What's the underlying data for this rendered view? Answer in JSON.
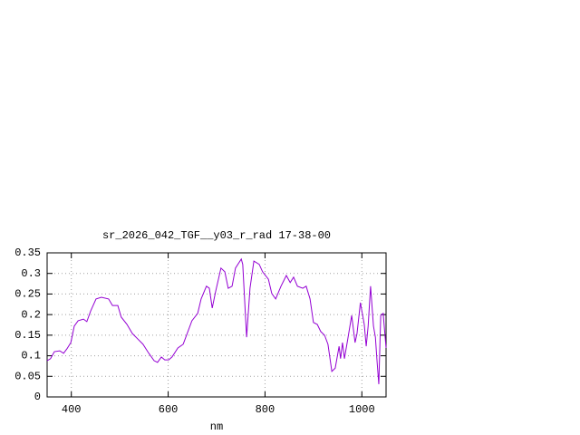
{
  "chart_data": {
    "type": "line",
    "title": "sr_2026_042_TGF__y03_r_rad 17-38-00",
    "x_label": "nm",
    "x": [
      350,
      357,
      365,
      376,
      384,
      391,
      399,
      406,
      414,
      425,
      432,
      440,
      451,
      462,
      477,
      485,
      496,
      503,
      515,
      526,
      537,
      548,
      560,
      571,
      578,
      586,
      593,
      601,
      608,
      620,
      631,
      638,
      649,
      661,
      668,
      679,
      685,
      691,
      698,
      709,
      717,
      724,
      732,
      739,
      751,
      754,
      762,
      769,
      777,
      788,
      795,
      807,
      814,
      822,
      833,
      844,
      852,
      859,
      867,
      878,
      885,
      893,
      900,
      908,
      915,
      923,
      930,
      938,
      945,
      953,
      956,
      960,
      964,
      971,
      979,
      986,
      990,
      997,
      1005,
      1009,
      1013,
      1018,
      1024,
      1028,
      1031,
      1035,
      1039,
      1044,
      1050
    ],
    "series": [
      {
        "name": "sr_2026_042_TGF__y03_r_rad",
        "color": "#9400d3",
        "values": [
          0.088,
          0.093,
          0.11,
          0.112,
          0.106,
          0.117,
          0.132,
          0.172,
          0.185,
          0.189,
          0.183,
          0.209,
          0.238,
          0.242,
          0.238,
          0.222,
          0.222,
          0.194,
          0.176,
          0.154,
          0.141,
          0.128,
          0.106,
          0.088,
          0.084,
          0.097,
          0.09,
          0.09,
          0.097,
          0.119,
          0.128,
          0.15,
          0.185,
          0.203,
          0.238,
          0.269,
          0.264,
          0.216,
          0.256,
          0.313,
          0.304,
          0.264,
          0.269,
          0.313,
          0.335,
          0.322,
          0.145,
          0.264,
          0.33,
          0.322,
          0.304,
          0.286,
          0.251,
          0.238,
          0.269,
          0.295,
          0.278,
          0.291,
          0.269,
          0.264,
          0.269,
          0.238,
          0.181,
          0.176,
          0.159,
          0.15,
          0.128,
          0.062,
          0.07,
          0.123,
          0.093,
          0.132,
          0.093,
          0.141,
          0.198,
          0.132,
          0.154,
          0.229,
          0.176,
          0.123,
          0.172,
          0.269,
          0.172,
          0.145,
          0.093,
          0.031,
          0.198,
          0.203,
          0.119
        ]
      }
    ],
    "xlim": [
      350,
      1050
    ],
    "xticks": [
      400,
      600,
      800,
      1000
    ],
    "ylim": [
      0,
      0.35
    ],
    "yticks": [
      0,
      0.05,
      0.1,
      0.15,
      0.2,
      0.25,
      0.3,
      0.35
    ],
    "grid": true
  }
}
